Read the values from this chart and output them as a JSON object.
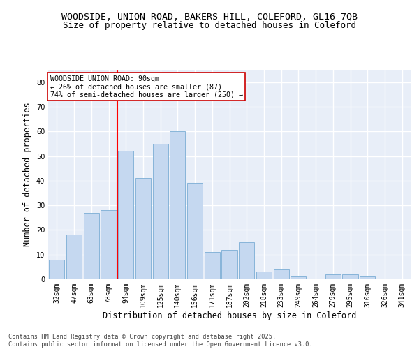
{
  "title1": "WOODSIDE, UNION ROAD, BAKERS HILL, COLEFORD, GL16 7QB",
  "title2": "Size of property relative to detached houses in Coleford",
  "xlabel": "Distribution of detached houses by size in Coleford",
  "ylabel": "Number of detached properties",
  "categories": [
    "32sqm",
    "47sqm",
    "63sqm",
    "78sqm",
    "94sqm",
    "109sqm",
    "125sqm",
    "140sqm",
    "156sqm",
    "171sqm",
    "187sqm",
    "202sqm",
    "218sqm",
    "233sqm",
    "249sqm",
    "264sqm",
    "279sqm",
    "295sqm",
    "310sqm",
    "326sqm",
    "341sqm"
  ],
  "values": [
    8,
    18,
    27,
    28,
    52,
    41,
    55,
    60,
    39,
    11,
    12,
    15,
    3,
    4,
    1,
    0,
    2,
    2,
    1,
    0,
    0
  ],
  "bar_color": "#c5d8f0",
  "bar_edge_color": "#7aadd4",
  "red_line_index": 4,
  "annotation_line1": "WOODSIDE UNION ROAD: 90sqm",
  "annotation_line2": "← 26% of detached houses are smaller (87)",
  "annotation_line3": "74% of semi-detached houses are larger (250) →",
  "annotation_box_color": "#ffffff",
  "annotation_box_edge": "#cc0000",
  "ylim": [
    0,
    85
  ],
  "yticks": [
    0,
    10,
    20,
    30,
    40,
    50,
    60,
    70,
    80
  ],
  "background_color": "#e8eef8",
  "grid_color": "#ffffff",
  "footer_line1": "Contains HM Land Registry data © Crown copyright and database right 2025.",
  "footer_line2": "Contains public sector information licensed under the Open Government Licence v3.0.",
  "title1_fontsize": 9.5,
  "title2_fontsize": 9,
  "tick_fontsize": 7,
  "label_fontsize": 8.5
}
